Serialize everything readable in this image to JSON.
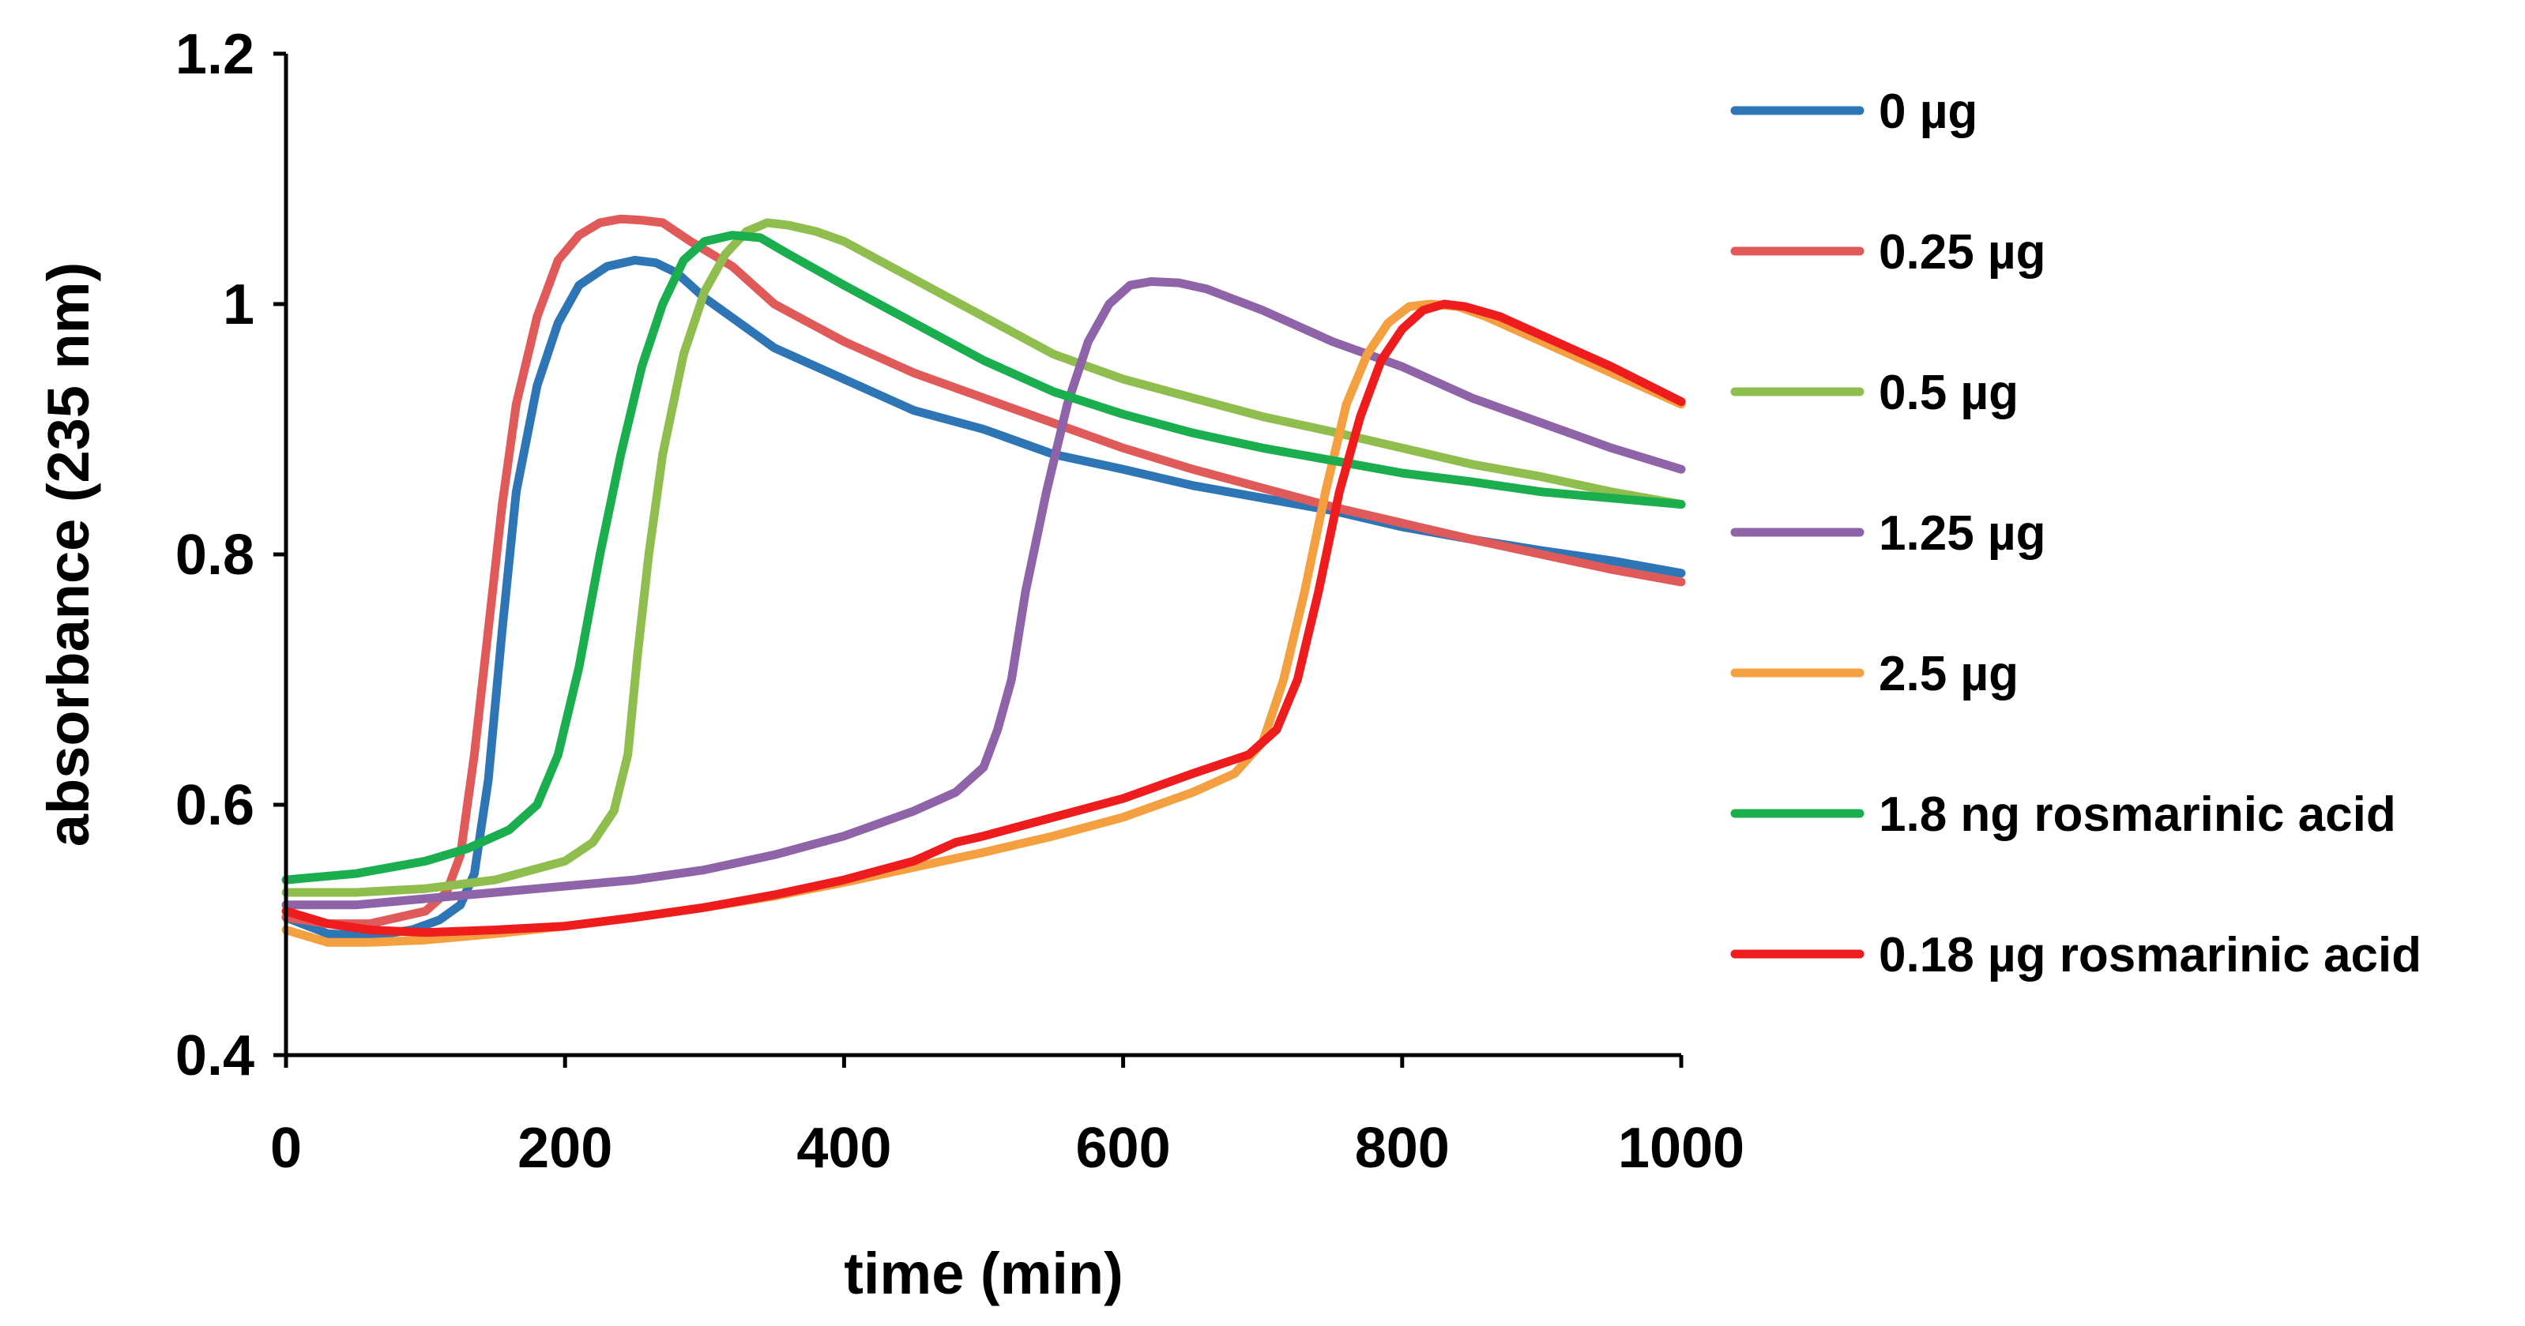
{
  "chart_data": {
    "type": "line",
    "title": "",
    "xlabel": "time (min)",
    "ylabel": "absorbance (235 nm)",
    "xlim": [
      0,
      1000
    ],
    "ylim": [
      0.4,
      1.2
    ],
    "xticks": [
      0,
      200,
      400,
      600,
      800,
      1000
    ],
    "yticks": [
      0.4,
      0.6,
      0.8,
      1.0,
      1.2
    ],
    "xtick_labels": [
      "0",
      "200",
      "400",
      "600",
      "800",
      "1000"
    ],
    "ytick_labels": [
      "0.4",
      "0.6",
      "0.8",
      "1",
      "1.2"
    ],
    "grid": false,
    "legend_position": "right",
    "series": [
      {
        "name": "0 µg",
        "color": "#2E75B6",
        "x": [
          0,
          30,
          60,
          90,
          110,
          125,
          135,
          145,
          155,
          165,
          180,
          195,
          210,
          230,
          250,
          265,
          280,
          300,
          350,
          400,
          450,
          500,
          550,
          600,
          650,
          700,
          750,
          800,
          850,
          900,
          950,
          1000
        ],
        "y": [
          0.51,
          0.497,
          0.495,
          0.5,
          0.508,
          0.52,
          0.545,
          0.62,
          0.74,
          0.85,
          0.935,
          0.985,
          1.015,
          1.03,
          1.035,
          1.033,
          1.025,
          1.005,
          0.965,
          0.94,
          0.915,
          0.9,
          0.88,
          0.868,
          0.855,
          0.845,
          0.835,
          0.822,
          0.812,
          0.803,
          0.795,
          0.785
        ]
      },
      {
        "name": "0.25 µg",
        "color": "#E05A5A",
        "x": [
          0,
          30,
          60,
          80,
          100,
          115,
          125,
          135,
          145,
          155,
          165,
          180,
          195,
          210,
          225,
          240,
          255,
          270,
          290,
          320,
          350,
          400,
          450,
          500,
          550,
          600,
          650,
          700,
          750,
          800,
          850,
          900,
          950,
          1000
        ],
        "y": [
          0.51,
          0.505,
          0.505,
          0.51,
          0.515,
          0.53,
          0.56,
          0.64,
          0.74,
          0.84,
          0.92,
          0.99,
          1.035,
          1.055,
          1.065,
          1.068,
          1.067,
          1.065,
          1.05,
          1.03,
          1.0,
          0.97,
          0.945,
          0.925,
          0.905,
          0.885,
          0.868,
          0.853,
          0.838,
          0.825,
          0.812,
          0.8,
          0.788,
          0.778
        ]
      },
      {
        "name": "0.5 µg",
        "color": "#8FBE4E",
        "x": [
          0,
          50,
          100,
          150,
          200,
          220,
          235,
          245,
          252,
          260,
          270,
          285,
          300,
          315,
          330,
          345,
          360,
          380,
          400,
          450,
          500,
          550,
          600,
          650,
          700,
          750,
          800,
          850,
          900,
          950,
          1000
        ],
        "y": [
          0.53,
          0.53,
          0.533,
          0.54,
          0.555,
          0.57,
          0.595,
          0.64,
          0.72,
          0.8,
          0.88,
          0.96,
          1.01,
          1.04,
          1.058,
          1.065,
          1.063,
          1.058,
          1.05,
          1.02,
          0.99,
          0.96,
          0.94,
          0.925,
          0.91,
          0.898,
          0.885,
          0.872,
          0.862,
          0.85,
          0.84
        ]
      },
      {
        "name": "1.25 µg",
        "color": "#8E63A8",
        "x": [
          0,
          50,
          100,
          150,
          200,
          250,
          300,
          350,
          400,
          450,
          480,
          500,
          510,
          520,
          530,
          545,
          560,
          575,
          590,
          605,
          620,
          640,
          660,
          700,
          750,
          800,
          850,
          900,
          950,
          1000
        ],
        "y": [
          0.52,
          0.52,
          0.525,
          0.53,
          0.535,
          0.54,
          0.548,
          0.56,
          0.575,
          0.595,
          0.61,
          0.63,
          0.66,
          0.7,
          0.77,
          0.85,
          0.92,
          0.97,
          1.0,
          1.015,
          1.018,
          1.017,
          1.012,
          0.995,
          0.97,
          0.95,
          0.925,
          0.905,
          0.885,
          0.868
        ]
      },
      {
        "name": "2.5 µg",
        "color": "#F5A040",
        "x": [
          0,
          30,
          60,
          100,
          150,
          200,
          250,
          300,
          350,
          400,
          450,
          500,
          550,
          600,
          650,
          680,
          700,
          715,
          730,
          745,
          760,
          775,
          790,
          805,
          820,
          840,
          860,
          900,
          950,
          1000
        ],
        "y": [
          0.5,
          0.49,
          0.49,
          0.492,
          0.497,
          0.503,
          0.51,
          0.518,
          0.527,
          0.538,
          0.55,
          0.562,
          0.575,
          0.59,
          0.61,
          0.625,
          0.65,
          0.7,
          0.77,
          0.85,
          0.92,
          0.96,
          0.985,
          0.998,
          1.0,
          0.998,
          0.99,
          0.97,
          0.945,
          0.92
        ]
      },
      {
        "name": "1.8 ng rosmarinic acid",
        "color": "#1AAE4E",
        "x": [
          0,
          50,
          100,
          130,
          160,
          180,
          195,
          210,
          225,
          240,
          255,
          270,
          285,
          300,
          320,
          340,
          360,
          400,
          450,
          500,
          550,
          600,
          650,
          700,
          750,
          800,
          850,
          900,
          950,
          1000
        ],
        "y": [
          0.54,
          0.545,
          0.555,
          0.565,
          0.58,
          0.6,
          0.64,
          0.71,
          0.8,
          0.88,
          0.95,
          1.0,
          1.035,
          1.05,
          1.055,
          1.053,
          1.04,
          1.015,
          0.985,
          0.955,
          0.93,
          0.912,
          0.897,
          0.885,
          0.875,
          0.865,
          0.858,
          0.85,
          0.845,
          0.84
        ]
      },
      {
        "name": "0.18 µg rosmarinic acid",
        "color": "#EE1C1C",
        "x": [
          0,
          30,
          60,
          100,
          150,
          200,
          250,
          300,
          350,
          400,
          450,
          470,
          480,
          500,
          550,
          600,
          650,
          690,
          710,
          725,
          740,
          755,
          770,
          785,
          800,
          815,
          830,
          845,
          870,
          900,
          950,
          1000
        ],
        "y": [
          0.515,
          0.505,
          0.5,
          0.498,
          0.5,
          0.503,
          0.51,
          0.518,
          0.528,
          0.54,
          0.555,
          0.565,
          0.57,
          0.575,
          0.59,
          0.605,
          0.625,
          0.64,
          0.66,
          0.7,
          0.77,
          0.85,
          0.91,
          0.955,
          0.98,
          0.995,
          1.0,
          0.998,
          0.99,
          0.975,
          0.95,
          0.922
        ]
      }
    ]
  }
}
